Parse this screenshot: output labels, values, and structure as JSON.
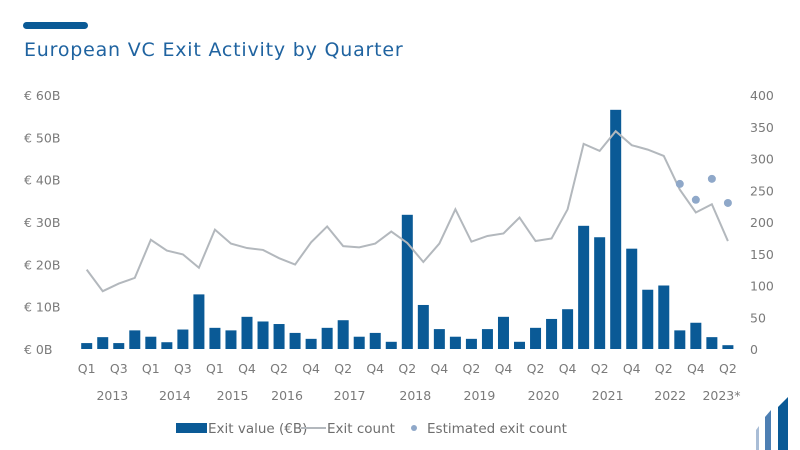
{
  "title": "European VC Exit Activity by Quarter",
  "colors": {
    "bar": "#0a5a96",
    "line": "#b3b8bd",
    "dot": "#8fa8c9",
    "text": "#7a7a7a",
    "title": "#1f63a0"
  },
  "chart_data": {
    "type": "bar+line",
    "title": "European VC Exit Activity by Quarter",
    "left_axis": {
      "label": "Exit value (€B)",
      "ylim": [
        0,
        60
      ],
      "ticks": [
        0,
        10,
        20,
        30,
        40,
        50,
        60
      ],
      "tick_labels": [
        "€ 0B",
        "€ 10B",
        "€ 20B",
        "€ 30B",
        "€ 40B",
        "€ 50B",
        "€ 60B"
      ]
    },
    "right_axis": {
      "label": "Exit count",
      "ylim": [
        0,
        400
      ],
      "ticks": [
        0,
        50,
        100,
        150,
        200,
        250,
        300,
        350,
        400
      ],
      "tick_labels": [
        "0",
        "50",
        "100",
        "150",
        "200",
        "250",
        "300",
        "350",
        "400"
      ]
    },
    "x_tick_labels": [
      "Q1",
      "Q3",
      "Q1",
      "Q3",
      "Q1",
      "Q4",
      "Q2",
      "Q4",
      "Q2",
      "Q4",
      "Q2",
      "Q4",
      "Q2",
      "Q4",
      "Q2",
      "Q4",
      "Q2",
      "Q4",
      "Q2",
      "Q4",
      "Q2"
    ],
    "x_tick_every": 2,
    "year_labels": [
      {
        "label": "2013",
        "at_index": 1.6
      },
      {
        "label": "2014",
        "at_index": 5.5
      },
      {
        "label": "2015",
        "at_index": 9.1
      },
      {
        "label": "2016",
        "at_index": 12.5
      },
      {
        "label": "2017",
        "at_index": 16.4
      },
      {
        "label": "2018",
        "at_index": 20.5
      },
      {
        "label": "2019",
        "at_index": 24.5
      },
      {
        "label": "2020",
        "at_index": 28.5
      },
      {
        "label": "2021",
        "at_index": 32.5
      },
      {
        "label": "2022",
        "at_index": 36.4
      },
      {
        "label": "2023*",
        "at_index": 39.6
      }
    ],
    "series": [
      {
        "name": "Exit value (€B)",
        "type": "bar",
        "axis": "left",
        "values": [
          1.4,
          2.8,
          1.4,
          4.4,
          2.9,
          1.6,
          4.6,
          12.9,
          5.0,
          4.4,
          7.6,
          6.5,
          5.9,
          3.8,
          2.4,
          5.0,
          6.8,
          2.9,
          3.8,
          1.7,
          31.7,
          10.4,
          4.7,
          2.9,
          2.4,
          4.7,
          7.6,
          1.7,
          5.0,
          7.1,
          9.4,
          29.1,
          26.4,
          56.5,
          23.7,
          14.0,
          15.0,
          4.4,
          6.2,
          2.8,
          0.9
        ]
      },
      {
        "name": "Exit count",
        "type": "line",
        "axis": "right",
        "values": [
          125,
          91,
          103,
          112,
          172,
          155,
          149,
          128,
          188,
          166,
          159,
          156,
          143,
          133,
          168,
          193,
          162,
          160,
          166,
          185,
          167,
          137,
          166,
          220,
          169,
          178,
          182,
          207,
          170,
          174,
          220,
          323,
          312,
          343,
          321,
          314,
          304,
          251,
          215,
          228,
          170
        ]
      },
      {
        "name": "Estimated exit count",
        "type": "scatter",
        "axis": "right",
        "points": [
          {
            "index": 37,
            "value": 260
          },
          {
            "index": 38,
            "value": 235
          },
          {
            "index": 39,
            "value": 268
          },
          {
            "index": 40,
            "value": 230
          }
        ]
      }
    ],
    "legend": {
      "placement": "bottom",
      "items": [
        "Exit value (€B)",
        "Exit count",
        "Estimated exit count"
      ]
    }
  }
}
